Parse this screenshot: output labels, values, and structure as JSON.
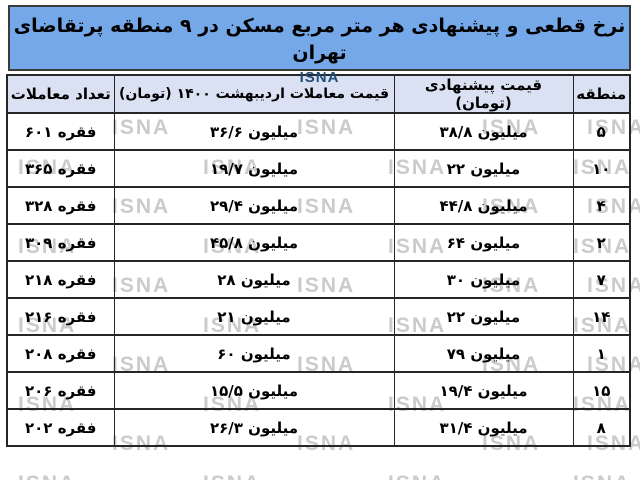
{
  "header": {
    "agency_label": "ISNA"
  },
  "watermark_text": "ISNA",
  "colors": {
    "title_bar_bg": "#75a8e8",
    "title_text": "#000000",
    "agency_text": "#1f4e79",
    "column_header_bg": "#d9e1f2",
    "row_bg": "#ffffff",
    "border": "#262626",
    "watermark": "#cbcbcb"
  },
  "chart_data": {
    "type": "table",
    "title": "نرخ قطعی و پیشنهادی هر متر مربع مسکن در ۹ منطقه پرتقاضای تهران",
    "source": "ISNA",
    "columns": [
      "منطقه",
      "قیمت پیشنهادی (تومان)",
      "قیمت معاملات اردیبهشت ۱۴۰۰ (تومان)",
      "تعداد معاملات"
    ],
    "rows": [
      {
        "region_fa": "۵",
        "offered_fa": "۳۸/۸ میلیون",
        "deal_fa": "۳۶/۶ میلیون",
        "count_fa": "۶۰۱ فقره",
        "region": 5,
        "offered_million_toman": 38.8,
        "deal_million_toman": 36.6,
        "deals_count": 601
      },
      {
        "region_fa": "۱۰",
        "offered_fa": "۲۲ میلیون",
        "deal_fa": "۱۹/۷ میلیون",
        "count_fa": "۳۶۵ فقره",
        "region": 10,
        "offered_million_toman": 22,
        "deal_million_toman": 19.7,
        "deals_count": 365
      },
      {
        "region_fa": "۴",
        "offered_fa": "۴۴/۸ میلیون",
        "deal_fa": "۲۹/۴ میلیون",
        "count_fa": "۳۲۸ فقره",
        "region": 4,
        "offered_million_toman": 44.8,
        "deal_million_toman": 29.4,
        "deals_count": 328
      },
      {
        "region_fa": "۲",
        "offered_fa": "۶۴ میلیون",
        "deal_fa": "۴۵/۸ میلیون",
        "count_fa": "۳۰۹ فقره",
        "region": 2,
        "offered_million_toman": 64,
        "deal_million_toman": 45.8,
        "deals_count": 309
      },
      {
        "region_fa": "۷",
        "offered_fa": "۳۰ میلیون",
        "deal_fa": "۲۸ میلیون",
        "count_fa": "۲۱۸ فقره",
        "region": 7,
        "offered_million_toman": 30,
        "deal_million_toman": 28,
        "deals_count": 218
      },
      {
        "region_fa": "۱۴",
        "offered_fa": "۲۲ میلیون",
        "deal_fa": "۲۱ میلیون",
        "count_fa": "۲۱۶ فقره",
        "region": 14,
        "offered_million_toman": 22,
        "deal_million_toman": 21,
        "deals_count": 216
      },
      {
        "region_fa": "۱",
        "offered_fa": "۷۹ میلیون",
        "deal_fa": "۶۰ میلیون",
        "count_fa": "۲۰۸ فقره",
        "region": 1,
        "offered_million_toman": 79,
        "deal_million_toman": 60,
        "deals_count": 208
      },
      {
        "region_fa": "۱۵",
        "offered_fa": "۱۹/۴ میلیون",
        "deal_fa": "۱۵/۵ میلیون",
        "count_fa": "۲۰۶ فقره",
        "region": 15,
        "offered_million_toman": 19.4,
        "deal_million_toman": 15.5,
        "deals_count": 206
      },
      {
        "region_fa": "۸",
        "offered_fa": "۳۱/۴ میلیون",
        "deal_fa": "۲۶/۳ میلیون",
        "count_fa": "۲۰۲ فقره",
        "region": 8,
        "offered_million_toman": 31.4,
        "deal_million_toman": 26.3,
        "deals_count": 202
      }
    ],
    "layout_hints": {
      "direction": "rtl",
      "grid": true,
      "header_row": true
    }
  }
}
